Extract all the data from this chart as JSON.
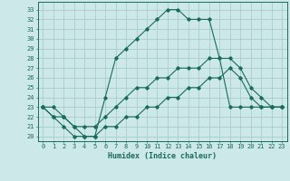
{
  "title": "",
  "xlabel": "Humidex (Indice chaleur)",
  "bg_color": "#cce8e8",
  "grid_color": "#aacccc",
  "line_color": "#1a6b5a",
  "xlim": [
    -0.5,
    23.5
  ],
  "ylim": [
    19.5,
    33.8
  ],
  "yticks": [
    20,
    21,
    22,
    23,
    24,
    25,
    26,
    27,
    28,
    29,
    30,
    31,
    32,
    33
  ],
  "xticks": [
    0,
    1,
    2,
    3,
    4,
    5,
    6,
    7,
    8,
    9,
    10,
    11,
    12,
    13,
    14,
    15,
    16,
    17,
    18,
    19,
    20,
    21,
    22,
    23
  ],
  "line1_x": [
    0,
    1,
    2,
    3,
    4,
    5,
    6,
    7,
    8,
    9,
    10,
    11,
    12,
    13,
    14,
    15,
    16,
    17,
    18,
    19,
    20,
    21,
    22,
    23
  ],
  "line1_y": [
    23,
    23,
    22,
    21,
    20,
    20,
    24,
    28,
    29,
    30,
    31,
    32,
    33,
    33,
    32,
    32,
    32,
    28,
    23,
    23,
    23,
    23,
    23,
    23
  ],
  "line2_x": [
    0,
    1,
    2,
    3,
    4,
    5,
    6,
    7,
    8,
    9,
    10,
    11,
    12,
    13,
    14,
    15,
    16,
    17,
    18,
    19,
    20,
    21,
    22,
    23
  ],
  "line2_y": [
    23,
    22,
    21,
    20,
    20,
    20,
    21,
    21,
    22,
    22,
    23,
    23,
    24,
    24,
    25,
    25,
    26,
    26,
    27,
    26,
    24,
    23,
    23,
    23
  ],
  "line3_x": [
    0,
    1,
    2,
    3,
    4,
    5,
    6,
    7,
    8,
    9,
    10,
    11,
    12,
    13,
    14,
    15,
    16,
    17,
    18,
    19,
    20,
    21,
    22,
    23
  ],
  "line3_y": [
    23,
    22,
    22,
    21,
    21,
    21,
    22,
    23,
    24,
    25,
    25,
    26,
    26,
    27,
    27,
    27,
    28,
    28,
    28,
    27,
    25,
    24,
    23,
    23
  ]
}
